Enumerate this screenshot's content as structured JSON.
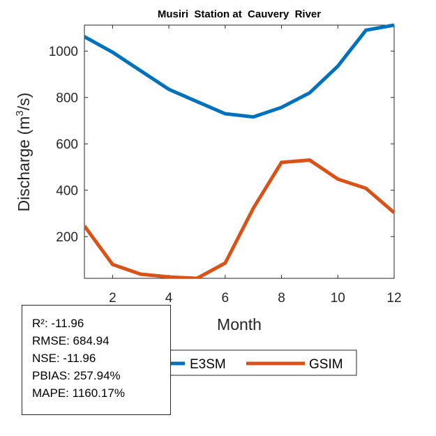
{
  "chart_data": {
    "type": "line",
    "title": "Musiri  Station at  Cauvery  River",
    "xlabel": "Month",
    "ylabel": "Discharge (m³/s)",
    "ylabel_parts": {
      "prefix": "Discharge (m",
      "sup": "3",
      "suffix": "/s)"
    },
    "xlim": [
      1,
      12
    ],
    "ylim": [
      20,
      1112
    ],
    "xticks": [
      2,
      4,
      6,
      8,
      10,
      12
    ],
    "yticks": [
      200,
      400,
      600,
      800,
      1000
    ],
    "grid": false,
    "x": [
      1,
      2,
      3,
      4,
      5,
      6,
      7,
      8,
      9,
      10,
      11,
      12
    ],
    "series": [
      {
        "name": "E3SM",
        "color": "#0072BD",
        "values": [
          1062,
          995,
          915,
          835,
          782,
          730,
          716,
          757,
          820,
          935,
          1090,
          1112
        ]
      },
      {
        "name": "GSIM",
        "color": "#D95319",
        "values": [
          246,
          80,
          38,
          26,
          20,
          86,
          323,
          520,
          530,
          448,
          408,
          303
        ]
      }
    ],
    "legend": {
      "placement": "bottom-center",
      "orientation": "horizontal",
      "entries": [
        "E3SM",
        "GSIM"
      ]
    },
    "annotation": {
      "placement": "bottom-left",
      "lines": [
        "R²: -11.96",
        "RMSE: 684.94",
        "NSE: -11.96",
        "PBIAS: 257.94%",
        "MAPE: 1160.17%"
      ]
    }
  }
}
